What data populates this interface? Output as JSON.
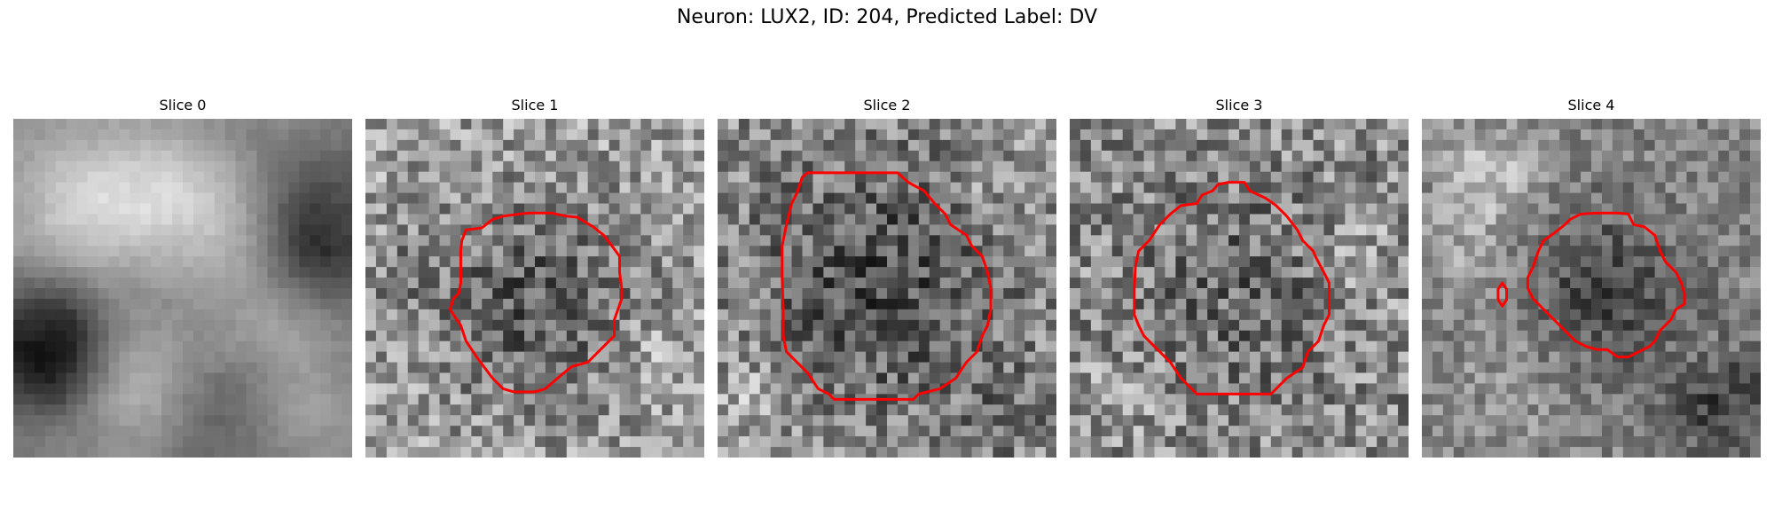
{
  "figure": {
    "title": "Neuron: LUX2, ID: 204, Predicted Label: DV"
  },
  "slices": [
    {
      "title": "Slice 0",
      "has_contour": false
    },
    {
      "title": "Slice 1",
      "has_contour": true
    },
    {
      "title": "Slice 2",
      "has_contour": true
    },
    {
      "title": "Slice 3",
      "has_contour": true
    },
    {
      "title": "Slice 4",
      "has_contour": true
    }
  ],
  "colors": {
    "contour": "#ff0000",
    "background": "#ffffff"
  },
  "colormap": "gray"
}
